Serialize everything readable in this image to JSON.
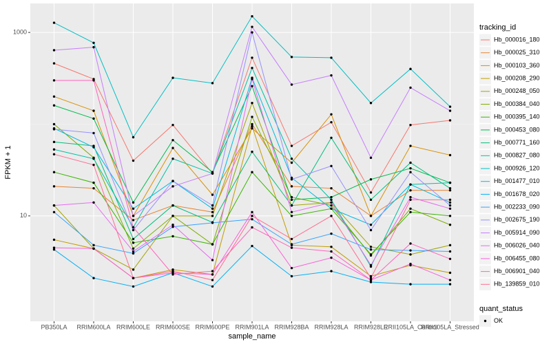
{
  "chart_data": {
    "type": "line",
    "log_y": true,
    "grid": true,
    "x_label": "sample_name",
    "y_label": "FPKM + 1",
    "legend_title": "tracking_id",
    "legend_position": "right",
    "point_legend_title": "quant_status",
    "point_legend_label": "OK",
    "point_color": "#000000",
    "categories": [
      "PB350LA",
      "RRIM600LA",
      "RRIM600LE",
      "RRIM600SE",
      "RRIM600PE",
      "RRIM901LA",
      "RRIM928BA",
      "RRIM928LA",
      "RRIM928LE",
      "RRII105LA_Control",
      "RRII105LA_Stressed"
    ],
    "ylim": [
      0.71,
      2070
    ],
    "yticks": [
      10,
      1000
    ],
    "series": [
      {
        "name": "Hb_000016_180",
        "color": "#F8766D",
        "values": [
          460,
          310,
          40,
          98,
          29,
          530,
          58,
          105,
          18,
          98,
          110
        ]
      },
      {
        "name": "Hb_000025_310",
        "color": "#EA8331",
        "values": [
          21,
          20,
          9,
          13,
          11,
          100,
          21,
          20,
          10,
          19,
          19
        ]
      },
      {
        "name": "Hb_000103_360",
        "color": "#D89000",
        "values": [
          200,
          140,
          10,
          55,
          17,
          90,
          38,
          128,
          10,
          58,
          46
        ]
      },
      {
        "name": "Hb_000208_290",
        "color": "#C09B00",
        "values": [
          5.5,
          4.4,
          2.1,
          2.6,
          2.3,
          95,
          4.8,
          4.6,
          2.2,
          2.9,
          2.4
        ]
      },
      {
        "name": "Hb_000248_050",
        "color": "#A3A500",
        "values": [
          13,
          4.4,
          2.6,
          10,
          10,
          170,
          13,
          14,
          4.6,
          3.8,
          4.8
        ]
      },
      {
        "name": "Hb_000384_040",
        "color": "#7CAE00",
        "values": [
          100,
          43,
          4.4,
          10,
          4.9,
          120,
          16,
          13,
          3.7,
          12,
          8
        ]
      },
      {
        "name": "Hb_000395_140",
        "color": "#39B600",
        "values": [
          30,
          23,
          5.1,
          6,
          4.9,
          30,
          10,
          12,
          3.8,
          11,
          10
        ]
      },
      {
        "name": "Hb_000453_080",
        "color": "#00BB4E",
        "values": [
          160,
          115,
          14,
          67,
          30,
          260,
          15,
          16,
          25,
          33,
          23
        ]
      },
      {
        "name": "Hb_000771_160",
        "color": "#00BF7D",
        "values": [
          64,
          58,
          5.6,
          13,
          8.5,
          50,
          13,
          71,
          15,
          38,
          20
        ]
      },
      {
        "name": "Hb_000827_080",
        "color": "#00C1A3",
        "values": [
          53,
          42,
          7.5,
          42,
          29,
          410,
          42,
          15,
          2.8,
          22,
          23
        ]
      },
      {
        "name": "Hb_000926_120",
        "color": "#00BFC4",
        "values": [
          1274,
          770,
          72,
          320,
          280,
          1500,
          540,
          530,
          170,
          400,
          155
        ]
      },
      {
        "name": "Hb_001477_010",
        "color": "#00BAE0",
        "values": [
          90,
          56,
          12,
          24,
          12,
          320,
          26,
          12,
          8,
          22,
          14
        ]
      },
      {
        "name": "Hb_001678_020",
        "color": "#00B0F6",
        "values": [
          4.3,
          2.1,
          1.7,
          2.4,
          1.7,
          4.7,
          2.2,
          2.5,
          1.9,
          1.8,
          1.8
        ]
      },
      {
        "name": "Hb_002233_090",
        "color": "#35A2FF",
        "values": [
          11,
          4.8,
          3.9,
          7.6,
          8.4,
          9.2,
          4.9,
          6.4,
          4.3,
          4.2,
          4.1
        ]
      },
      {
        "name": "Hb_002675_190",
        "color": "#9590FF",
        "values": [
          88,
          80,
          7,
          24,
          13,
          1000,
          25,
          35,
          7,
          30,
          13
        ]
      },
      {
        "name": "Hb_005914_090",
        "color": "#C77CFF",
        "values": [
          640,
          690,
          10,
          21,
          29,
          1150,
          270,
          340,
          43,
          250,
          140
        ]
      },
      {
        "name": "Hb_006026_040",
        "color": "#E76BF3",
        "values": [
          13,
          14,
          4.1,
          8,
          3.3,
          310,
          11,
          14,
          2.9,
          16,
          12
        ]
      },
      {
        "name": "Hb_006455_080",
        "color": "#FA62DB",
        "values": [
          4.5,
          4.4,
          2.1,
          2.4,
          2.3,
          11,
          2.7,
          3.5,
          2.0,
          3.0,
          2.0
        ]
      },
      {
        "name": "Hb_006901_040",
        "color": "#FF62BC",
        "values": [
          300,
          300,
          7.5,
          2.3,
          2.5,
          7.5,
          4.5,
          4.1,
          2.0,
          5.0,
          3.4
        ]
      },
      {
        "name": "Hb_139859_010",
        "color": "#FF6C91",
        "values": [
          47,
          36,
          2.1,
          2.5,
          2.0,
          10,
          5.6,
          10,
          2.1,
          15,
          15
        ]
      }
    ]
  }
}
